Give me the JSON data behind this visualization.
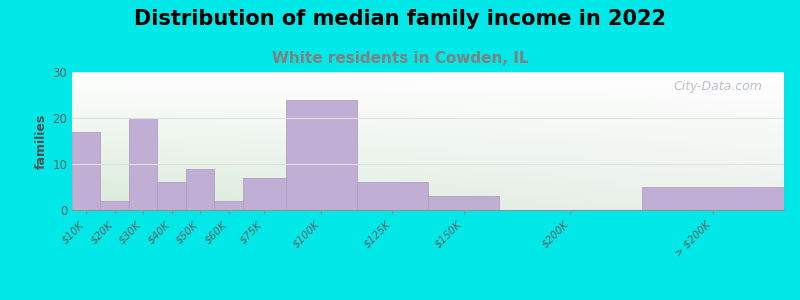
{
  "title": "Distribution of median family income in 2022",
  "subtitle": "White residents in Cowden, IL",
  "bin_labels": [
    "$10K",
    "$20K",
    "$30K",
    "$40K",
    "$50K",
    "$60K",
    "$75K",
    "$100K",
    "$125K",
    "$150K",
    "$200K",
    "> $200K"
  ],
  "bin_lefts": [
    0,
    10,
    20,
    30,
    40,
    50,
    60,
    75,
    100,
    125,
    150,
    200
  ],
  "bin_widths": [
    10,
    10,
    10,
    10,
    10,
    10,
    15,
    25,
    25,
    25,
    50,
    50
  ],
  "bin_centers": [
    5,
    15,
    25,
    35,
    45,
    55,
    67.5,
    87.5,
    112.5,
    137.5,
    175,
    225
  ],
  "values": [
    17,
    2,
    20,
    6,
    9,
    2,
    7,
    24,
    6,
    3,
    0,
    5
  ],
  "bar_color": "#c0aed4",
  "bar_edge_color": "#b09ec4",
  "bg_outer": "#00e8e8",
  "ylabel": "families",
  "ylim": [
    0,
    30
  ],
  "yticks": [
    0,
    10,
    20,
    30
  ],
  "title_fontsize": 15,
  "subtitle_fontsize": 11,
  "subtitle_color": "#808080",
  "watermark_text": "City-Data.com",
  "watermark_color": "#b0b8c0",
  "grid_color": "#e0e0e0",
  "bg_gradient_top": "#ffffff",
  "bg_gradient_bottom": "#d8ecda"
}
